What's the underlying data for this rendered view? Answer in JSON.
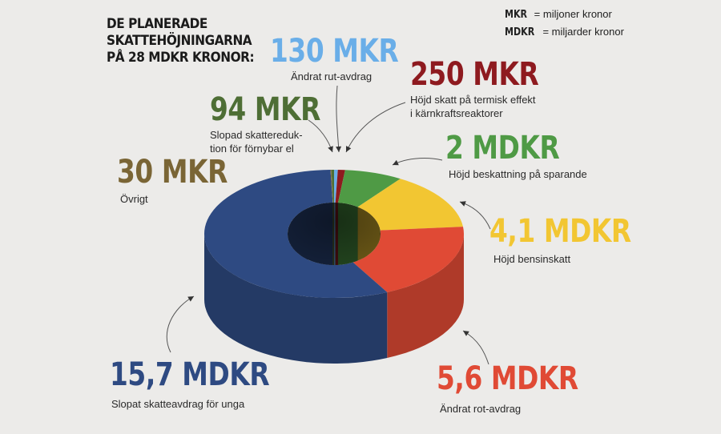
{
  "header": {
    "line1": "DE PLANERADE",
    "line2": "SKATTEHÖJNINGARNA",
    "line3": "PÅ 28 MDKR KRONOR:"
  },
  "legend": {
    "mkr_abbr": "MKR",
    "mkr_def": "= miljoner kronor",
    "mdkr_abbr": "MDKR",
    "mdkr_def": "= miljarder kronor"
  },
  "chart_data": {
    "type": "pie",
    "subtype": "3d-donut",
    "title": "DE PLANERADE SKATTEHÖJNINGARNA PÅ 28 MDKR KRONOR:",
    "unit": "MKR",
    "slices": [
      {
        "id": "rut",
        "value": 130,
        "label_value": "130 MKR",
        "label": "Ändrat rut-avdrag",
        "color": "#6aaee8"
      },
      {
        "id": "karnkraft",
        "value": 250,
        "label_value": "250 MKR",
        "label": "Höjd skatt på termisk effekt i kärnkraftsreaktorer",
        "label_lines": [
          "Höjd skatt på termisk effekt",
          "i kärnkraftsreaktorer"
        ],
        "color": "#8e1a1f"
      },
      {
        "id": "sparande",
        "value": 2000,
        "label_value": "2 MDKR",
        "label": "Höjd beskattning på sparande",
        "color": "#4f9a45"
      },
      {
        "id": "bensin",
        "value": 4100,
        "label_value": "4,1 MDKR",
        "label": "Höjd bensinskatt",
        "color": "#f2c632"
      },
      {
        "id": "rot",
        "value": 5600,
        "label_value": "5,6 MDKR",
        "label": "Ändrat rot-avdrag",
        "color": "#e04a35"
      },
      {
        "id": "unga",
        "value": 15700,
        "label_value": "15,7 MDKR",
        "label": "Slopat skatteavdrag för unga",
        "color": "#2e4a82"
      },
      {
        "id": "ovrigt",
        "value": 30,
        "label_value": "30 MKR",
        "label": "Övrigt",
        "color": "#8b7340"
      },
      {
        "id": "fornybar",
        "value": 94,
        "label_value": "94 MKR",
        "label": "Slopad skattereduktion för förnybar el",
        "label_lines": [
          "Slopad skattereduk-",
          "tion för förnybar el"
        ],
        "color": "#4e6e35"
      }
    ]
  }
}
